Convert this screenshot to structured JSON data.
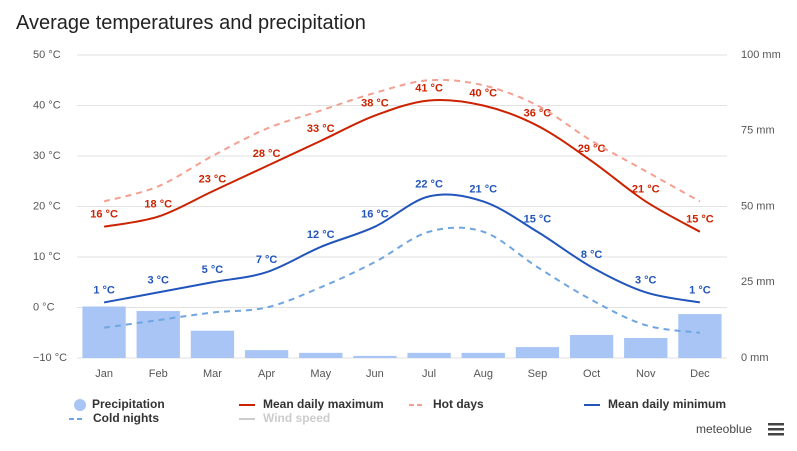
{
  "chart_data": {
    "type": "combo",
    "title": "Average temperatures and precipitation",
    "categories": [
      "Jan",
      "Feb",
      "Mar",
      "Apr",
      "May",
      "Jun",
      "Jul",
      "Aug",
      "Sep",
      "Oct",
      "Nov",
      "Dec"
    ],
    "ylim": [
      -10,
      50
    ],
    "yticks": [
      {
        "value": -10,
        "label": "−10 °C"
      },
      {
        "value": 0,
        "label": "0 °C"
      },
      {
        "value": 10,
        "label": "10 °C"
      },
      {
        "value": 20,
        "label": "20 °C"
      },
      {
        "value": 30,
        "label": "30 °C"
      },
      {
        "value": 40,
        "label": "40 °C"
      },
      {
        "value": 50,
        "label": "50 °C"
      }
    ],
    "y2lim": [
      0,
      100
    ],
    "y2ticks": [
      {
        "value": 0,
        "label": "0 mm"
      },
      {
        "value": 25,
        "label": "25 mm"
      },
      {
        "value": 50,
        "label": "50 mm"
      },
      {
        "value": 75,
        "label": "75 mm"
      },
      {
        "value": 100,
        "label": "100 mm"
      }
    ],
    "grid": true,
    "series": [
      {
        "name": "Precipitation",
        "type": "bar",
        "axis": "y2",
        "color": "#a9c5f5",
        "values": [
          17,
          15.5,
          9,
          2.6,
          1.7,
          0.7,
          1.7,
          1.7,
          3.6,
          7.6,
          6.6,
          14.5
        ]
      },
      {
        "name": "Mean daily maximum",
        "type": "line",
        "color": "#cc2200",
        "values": [
          16,
          18,
          23,
          28,
          33,
          38,
          41,
          40,
          36,
          29,
          21,
          15
        ],
        "value_labels": [
          "16 °C",
          "18 °C",
          "23 °C",
          "28 °C",
          "33 °C",
          "38 °C",
          "41 °C",
          "40 °C",
          "36 °C",
          "29 °C",
          "21 °C",
          "15 °C"
        ]
      },
      {
        "name": "Hot days",
        "type": "line",
        "dash": true,
        "color": "#f4a090",
        "values": [
          21,
          24,
          30,
          35.4,
          39,
          42.5,
          45,
          44,
          40,
          33,
          27,
          21
        ]
      },
      {
        "name": "Mean daily minimum",
        "type": "line",
        "color": "#2255bb",
        "values": [
          1,
          3,
          5,
          7,
          12,
          16,
          22,
          21,
          15,
          8,
          3,
          1
        ],
        "value_labels": [
          "1 °C",
          "3 °C",
          "5 °C",
          "7 °C",
          "12 °C",
          "16 °C",
          "22 °C",
          "21 °C",
          "15 °C",
          "8 °C",
          "3 °C",
          "1 °C"
        ]
      },
      {
        "name": "Cold nights",
        "type": "line",
        "dash": true,
        "color": "#6fa6e0",
        "values": [
          -4,
          -2.5,
          -1,
          0,
          4,
          9,
          15,
          15,
          8,
          1.5,
          -3.5,
          -5
        ]
      },
      {
        "name": "Wind speed",
        "type": "line",
        "hidden": true,
        "color": "#cccccc",
        "values": [
          null,
          null,
          null,
          null,
          null,
          null,
          null,
          null,
          null,
          null,
          null,
          null
        ]
      }
    ],
    "brand": "meteoblue"
  }
}
